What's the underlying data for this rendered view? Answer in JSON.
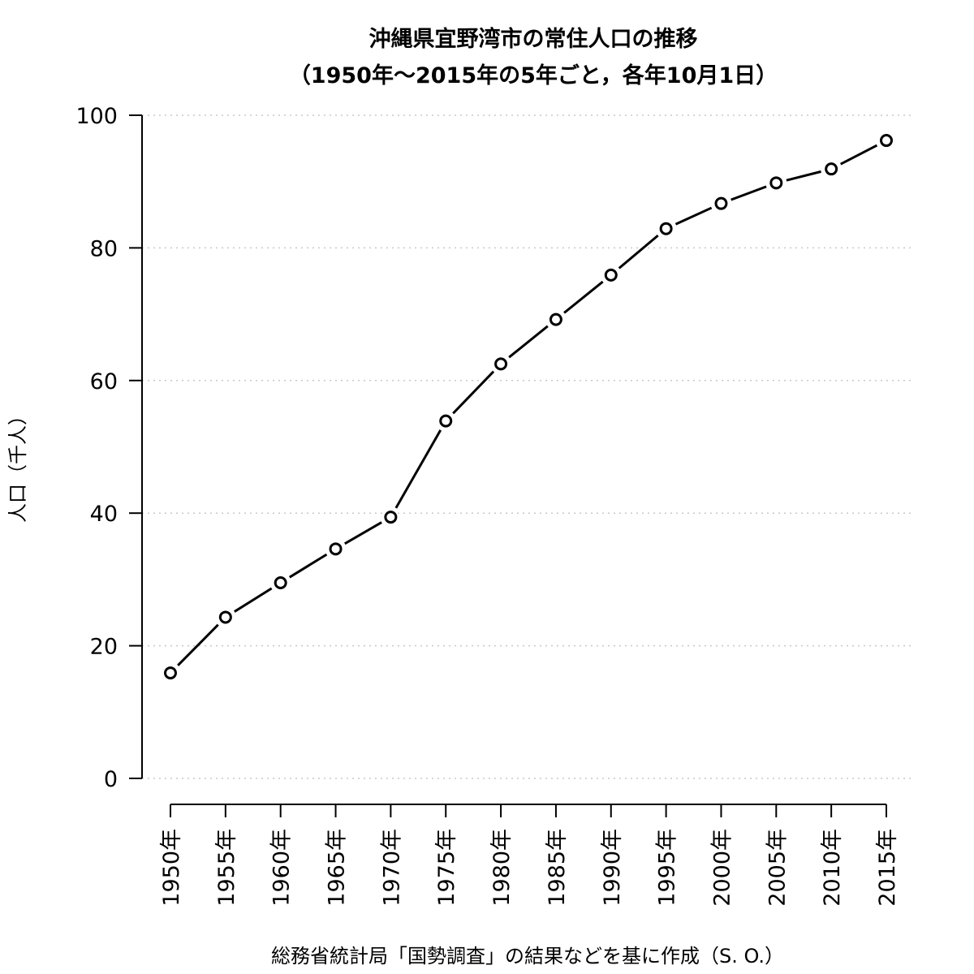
{
  "chart_data": {
    "type": "line",
    "title_line1": "沖縄県宜野湾市の常住人口の推移",
    "title_line2": "（1950年～2015年の5年ごと，各年10月1日）",
    "ylabel": "人口（千人）",
    "caption": "総務省統計局「国勢調査」の結果などを基に作成（S. O.）",
    "categories": [
      "1950年",
      "1955年",
      "1960年",
      "1965年",
      "1970年",
      "1975年",
      "1980年",
      "1985年",
      "1990年",
      "1995年",
      "2000年",
      "2005年",
      "2010年",
      "2015年"
    ],
    "values": [
      15.9,
      24.3,
      29.5,
      34.6,
      39.4,
      53.9,
      62.5,
      69.2,
      75.9,
      82.9,
      86.7,
      89.8,
      91.9,
      96.2
    ],
    "ylim": [
      0,
      100
    ],
    "yticks": [
      0,
      20,
      40,
      60,
      80,
      100
    ],
    "grid": true,
    "legend": "none",
    "line_color": "#000000",
    "grid_color": "#c8c8c8"
  }
}
